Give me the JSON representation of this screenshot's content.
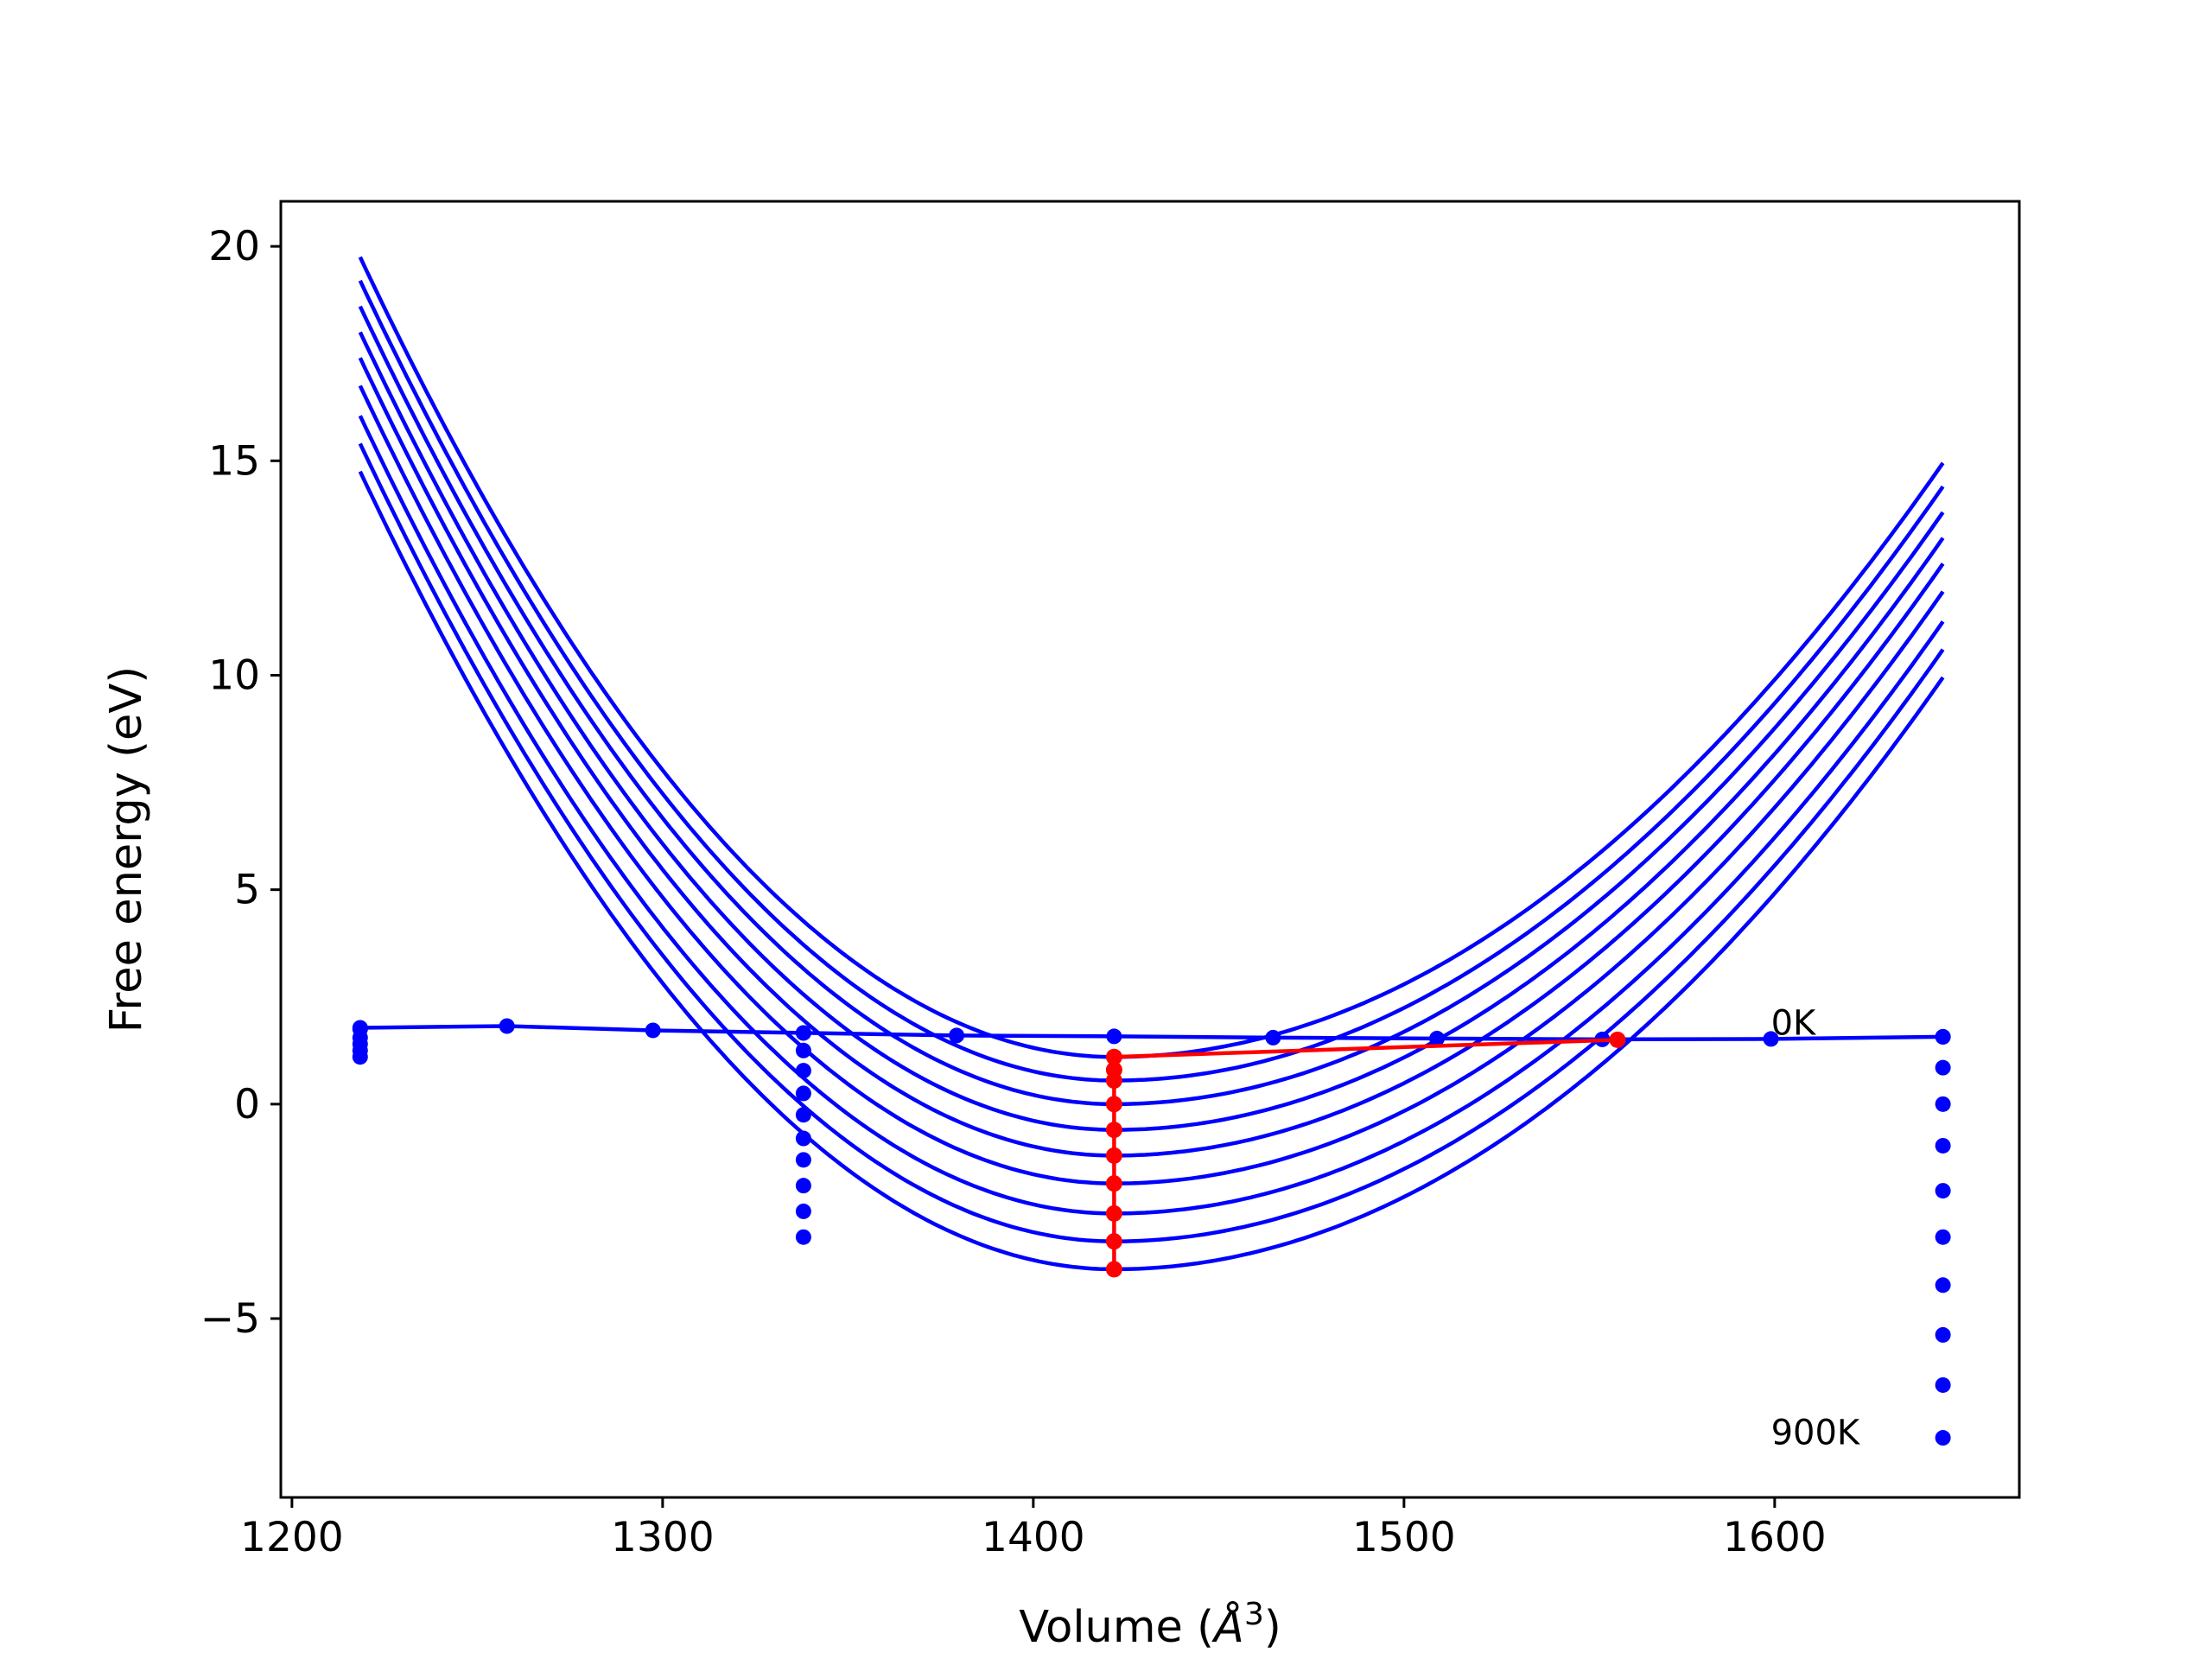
{
  "chart_data": {
    "type": "line",
    "title": "",
    "xlabel": "Volume (",
    "xlabel_unit": "Å",
    "xlabel_superscript": "3",
    "xlabel_close": ")",
    "ylabel": "Free energy (eV)",
    "xlim": [
      1197,
      1666
    ],
    "ylim": [
      -9.17,
      21.05
    ],
    "x_ticks": [
      1200,
      1300,
      1400,
      1500,
      1600
    ],
    "x_tick_labels": [
      "1200",
      "1300",
      "1400",
      "1500",
      "1600"
    ],
    "y_ticks": [
      -5,
      0,
      5,
      10,
      15,
      20
    ],
    "y_tick_labels": [
      "−5",
      "0",
      "5",
      "10",
      "15",
      "20"
    ],
    "grid": false,
    "legend": null,
    "colors": {
      "curves": "#0000ff",
      "minima": "#ff0000",
      "axes": "#000000"
    },
    "annotations": [
      {
        "text": "0K",
        "x": 1599,
        "y": 1.9
      },
      {
        "text": "900K",
        "x": 1599,
        "y": -7.65
      }
    ],
    "x_range": [
      1218.4,
      1645.4
    ],
    "energy_vs_volume_curves": [
      {
        "x_min": 1421.8,
        "y_min": 1.1,
        "y_left": 19.75,
        "y_right": 14.95
      },
      {
        "x_min": 1421.8,
        "y_min": 0.55,
        "y_left": 19.2,
        "y_right": 14.4
      },
      {
        "x_min": 1421.8,
        "y_min": 0.0,
        "y_left": 18.6,
        "y_right": 13.8
      },
      {
        "x_min": 1421.8,
        "y_min": -0.6,
        "y_left": 18.0,
        "y_right": 13.2
      },
      {
        "x_min": 1421.8,
        "y_min": -1.2,
        "y_left": 17.4,
        "y_right": 12.6
      },
      {
        "x_min": 1421.8,
        "y_min": -1.85,
        "y_left": 16.75,
        "y_right": 11.95
      },
      {
        "x_min": 1421.8,
        "y_min": -2.55,
        "y_left": 16.05,
        "y_right": 11.25
      },
      {
        "x_min": 1421.8,
        "y_min": -3.2,
        "y_left": 15.4,
        "y_right": 10.6
      },
      {
        "x_min": 1421.8,
        "y_min": -3.85,
        "y_left": 14.75,
        "y_right": 9.95
      }
    ],
    "zero_K_line": {
      "x": [
        1218.4,
        1258.0,
        1297.4,
        1338.0,
        1379.3,
        1421.8,
        1464.7,
        1508.9,
        1553.5,
        1599.0,
        1645.4
      ],
      "y": [
        1.78,
        1.82,
        1.72,
        1.66,
        1.6,
        1.58,
        1.55,
        1.53,
        1.51,
        1.52,
        1.57
      ]
    },
    "points_at_1218": {
      "x": 1218.4,
      "y": [
        1.75,
        1.55,
        1.4,
        1.25,
        1.1
      ]
    },
    "points_at_1338": {
      "x": 1338.0,
      "y": [
        1.66,
        1.25,
        0.78,
        0.25,
        -0.25,
        -0.8,
        -1.3,
        -1.9,
        -2.5,
        -3.1
      ]
    },
    "points_at_1645": {
      "x": 1645.4,
      "y": [
        1.57,
        0.85,
        0.0,
        -0.97,
        -2.02,
        -3.1,
        -4.22,
        -5.38,
        -6.55,
        -7.78
      ]
    },
    "minima_path": {
      "x": [
        1421.8,
        1421.8,
        1421.8,
        1421.8,
        1421.8,
        1421.8,
        1421.8,
        1421.8,
        1421.8,
        1421.8,
        1557.6
      ],
      "y": [
        -3.85,
        -3.2,
        -2.55,
        -1.85,
        -1.2,
        -0.6,
        0.0,
        0.55,
        0.8,
        1.1,
        1.5
      ]
    }
  }
}
